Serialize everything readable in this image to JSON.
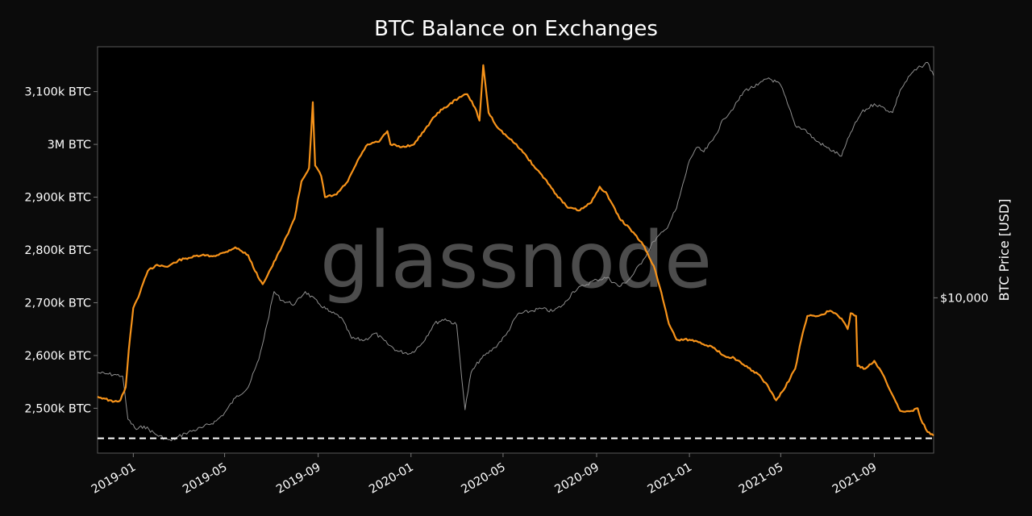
{
  "chart_data": {
    "type": "line",
    "title": "BTC Balance on Exchanges",
    "ylabel_right": "BTC Price [USD]",
    "watermark": "glassnode",
    "x_range": [
      "2018-11-15",
      "2021-11-18"
    ],
    "x_ticks": [
      {
        "date": "2019-01-01",
        "label": "2019-01"
      },
      {
        "date": "2019-05-01",
        "label": "2019-05"
      },
      {
        "date": "2019-09-01",
        "label": "2019-09"
      },
      {
        "date": "2020-01-01",
        "label": "2020-01"
      },
      {
        "date": "2020-05-01",
        "label": "2020-05"
      },
      {
        "date": "2020-09-01",
        "label": "2020-09"
      },
      {
        "date": "2021-01-01",
        "label": "2021-01"
      },
      {
        "date": "2021-05-01",
        "label": "2021-05"
      },
      {
        "date": "2021-09-01",
        "label": "2021-09"
      }
    ],
    "y_left": {
      "range": [
        2415000,
        3185000
      ],
      "ticks": [
        {
          "value": 2500000,
          "label": "2,500k BTC"
        },
        {
          "value": 2600000,
          "label": "2,600k BTC"
        },
        {
          "value": 2700000,
          "label": "2,700k BTC"
        },
        {
          "value": 2800000,
          "label": "2,800k BTC"
        },
        {
          "value": 2900000,
          "label": "2,900k BTC"
        },
        {
          "value": 3000000,
          "label": "3M BTC"
        },
        {
          "value": 3100000,
          "label": "3,100k BTC"
        }
      ]
    },
    "y_right": {
      "scale": "log",
      "range": [
        3000,
        70000
      ],
      "ticks": [
        {
          "value": 10000,
          "label": "$10,000"
        }
      ]
    },
    "reference_line": {
      "value": 2443000,
      "style": "dashed",
      "color": "#ffffff"
    },
    "series": [
      {
        "axis": "left",
        "color": "#f7931a",
        "points": [
          [
            "2018-11-15",
            2522000
          ],
          [
            "2018-11-25",
            2518000
          ],
          [
            "2018-12-05",
            2512000
          ],
          [
            "2018-12-15",
            2515000
          ],
          [
            "2018-12-22",
            2540000
          ],
          [
            "2018-12-26",
            2610000
          ],
          [
            "2019-01-01",
            2690000
          ],
          [
            "2019-01-10",
            2720000
          ],
          [
            "2019-01-20",
            2760000
          ],
          [
            "2019-02-01",
            2772000
          ],
          [
            "2019-02-15",
            2768000
          ],
          [
            "2019-03-01",
            2780000
          ],
          [
            "2019-03-15",
            2785000
          ],
          [
            "2019-04-01",
            2790000
          ],
          [
            "2019-04-15",
            2788000
          ],
          [
            "2019-05-01",
            2795000
          ],
          [
            "2019-05-15",
            2805000
          ],
          [
            "2019-06-01",
            2790000
          ],
          [
            "2019-06-10",
            2760000
          ],
          [
            "2019-06-20",
            2735000
          ],
          [
            "2019-07-01",
            2765000
          ],
          [
            "2019-07-15",
            2805000
          ],
          [
            "2019-08-01",
            2860000
          ],
          [
            "2019-08-10",
            2930000
          ],
          [
            "2019-08-20",
            2955000
          ],
          [
            "2019-08-25",
            3080000
          ],
          [
            "2019-08-28",
            2960000
          ],
          [
            "2019-09-05",
            2940000
          ],
          [
            "2019-09-10",
            2900000
          ],
          [
            "2019-09-25",
            2905000
          ],
          [
            "2019-10-10",
            2930000
          ],
          [
            "2019-10-25",
            2975000
          ],
          [
            "2019-11-05",
            3000000
          ],
          [
            "2019-11-20",
            3005000
          ],
          [
            "2019-12-01",
            3025000
          ],
          [
            "2019-12-05",
            3000000
          ],
          [
            "2019-12-20",
            2995000
          ],
          [
            "2020-01-05",
            3000000
          ],
          [
            "2020-01-20",
            3030000
          ],
          [
            "2020-02-05",
            3060000
          ],
          [
            "2020-02-20",
            3075000
          ],
          [
            "2020-03-05",
            3090000
          ],
          [
            "2020-03-15",
            3095000
          ],
          [
            "2020-03-25",
            3070000
          ],
          [
            "2020-03-31",
            3045000
          ],
          [
            "2020-04-05",
            3150000
          ],
          [
            "2020-04-12",
            3060000
          ],
          [
            "2020-04-25",
            3030000
          ],
          [
            "2020-05-10",
            3010000
          ],
          [
            "2020-05-25",
            2990000
          ],
          [
            "2020-06-10",
            2960000
          ],
          [
            "2020-06-25",
            2935000
          ],
          [
            "2020-07-10",
            2905000
          ],
          [
            "2020-07-25",
            2880000
          ],
          [
            "2020-08-10",
            2875000
          ],
          [
            "2020-08-25",
            2890000
          ],
          [
            "2020-09-05",
            2920000
          ],
          [
            "2020-09-15",
            2905000
          ],
          [
            "2020-10-01",
            2860000
          ],
          [
            "2020-10-15",
            2840000
          ],
          [
            "2020-11-01",
            2810000
          ],
          [
            "2020-11-15",
            2770000
          ],
          [
            "2020-11-25",
            2720000
          ],
          [
            "2020-12-05",
            2660000
          ],
          [
            "2020-12-15",
            2630000
          ],
          [
            "2021-01-01",
            2630000
          ],
          [
            "2021-01-15",
            2625000
          ],
          [
            "2021-02-01",
            2615000
          ],
          [
            "2021-02-15",
            2600000
          ],
          [
            "2021-03-01",
            2595000
          ],
          [
            "2021-03-15",
            2580000
          ],
          [
            "2021-04-01",
            2565000
          ],
          [
            "2021-04-15",
            2540000
          ],
          [
            "2021-04-25",
            2515000
          ],
          [
            "2021-05-05",
            2535000
          ],
          [
            "2021-05-20",
            2575000
          ],
          [
            "2021-05-28",
            2630000
          ],
          [
            "2021-06-05",
            2675000
          ],
          [
            "2021-06-20",
            2675000
          ],
          [
            "2021-07-05",
            2685000
          ],
          [
            "2021-07-20",
            2670000
          ],
          [
            "2021-07-28",
            2650000
          ],
          [
            "2021-08-01",
            2680000
          ],
          [
            "2021-08-08",
            2675000
          ],
          [
            "2021-08-10",
            2580000
          ],
          [
            "2021-08-20",
            2575000
          ],
          [
            "2021-09-01",
            2590000
          ],
          [
            "2021-09-10",
            2570000
          ],
          [
            "2021-09-25",
            2525000
          ],
          [
            "2021-10-05",
            2495000
          ],
          [
            "2021-10-20",
            2495000
          ],
          [
            "2021-10-28",
            2500000
          ],
          [
            "2021-11-01",
            2480000
          ],
          [
            "2021-11-10",
            2455000
          ],
          [
            "2021-11-18",
            2448000
          ]
        ]
      },
      {
        "axis": "right",
        "color": "#8f8f8f",
        "points": [
          [
            "2018-11-15",
            5600
          ],
          [
            "2018-11-25",
            5550
          ],
          [
            "2018-12-10",
            5500
          ],
          [
            "2018-12-18",
            5450
          ],
          [
            "2018-12-25",
            3900
          ],
          [
            "2019-01-05",
            3600
          ],
          [
            "2019-01-15",
            3700
          ],
          [
            "2019-02-01",
            3450
          ],
          [
            "2019-02-20",
            3300
          ],
          [
            "2019-03-10",
            3500
          ],
          [
            "2019-04-01",
            3650
          ],
          [
            "2019-04-20",
            3850
          ],
          [
            "2019-05-01",
            4100
          ],
          [
            "2019-05-15",
            4600
          ],
          [
            "2019-06-01",
            5000
          ],
          [
            "2019-06-15",
            6200
          ],
          [
            "2019-06-26",
            8200
          ],
          [
            "2019-07-05",
            10500
          ],
          [
            "2019-07-15",
            9800
          ],
          [
            "2019-08-01",
            9500
          ],
          [
            "2019-08-15",
            10500
          ],
          [
            "2019-09-01",
            9600
          ],
          [
            "2019-09-15",
            9000
          ],
          [
            "2019-10-01",
            8600
          ],
          [
            "2019-10-15",
            7300
          ],
          [
            "2019-11-01",
            7200
          ],
          [
            "2019-11-15",
            7600
          ],
          [
            "2019-12-01",
            7000
          ],
          [
            "2019-12-15",
            6600
          ],
          [
            "2020-01-01",
            6500
          ],
          [
            "2020-01-15",
            7000
          ],
          [
            "2020-02-01",
            8200
          ],
          [
            "2020-02-15",
            8500
          ],
          [
            "2020-03-01",
            8100
          ],
          [
            "2020-03-12",
            4200
          ],
          [
            "2020-03-20",
            5600
          ],
          [
            "2020-04-01",
            6200
          ],
          [
            "2020-04-20",
            6800
          ],
          [
            "2020-05-05",
            7500
          ],
          [
            "2020-05-20",
            8800
          ],
          [
            "2020-06-05",
            9000
          ],
          [
            "2020-06-20",
            9200
          ],
          [
            "2020-07-05",
            9000
          ],
          [
            "2020-07-20",
            9500
          ],
          [
            "2020-08-01",
            10500
          ],
          [
            "2020-08-15",
            11000
          ],
          [
            "2020-09-01",
            11500
          ],
          [
            "2020-09-15",
            11700
          ],
          [
            "2020-10-01",
            10900
          ],
          [
            "2020-10-15",
            11600
          ],
          [
            "2020-11-01",
            13400
          ],
          [
            "2020-11-15",
            15500
          ],
          [
            "2020-12-01",
            17000
          ],
          [
            "2020-12-15",
            20000
          ],
          [
            "2021-01-01",
            29000
          ],
          [
            "2021-01-10",
            32000
          ],
          [
            "2021-01-20",
            31000
          ],
          [
            "2021-02-01",
            34000
          ],
          [
            "2021-02-15",
            40000
          ],
          [
            "2021-03-01",
            44000
          ],
          [
            "2021-03-15",
            50000
          ],
          [
            "2021-04-01",
            52000
          ],
          [
            "2021-04-15",
            55000
          ],
          [
            "2021-05-01",
            52000
          ],
          [
            "2021-05-10",
            45000
          ],
          [
            "2021-05-20",
            38000
          ],
          [
            "2021-06-01",
            37000
          ],
          [
            "2021-06-15",
            34000
          ],
          [
            "2021-07-01",
            32000
          ],
          [
            "2021-07-20",
            30000
          ],
          [
            "2021-08-01",
            36000
          ],
          [
            "2021-08-15",
            42000
          ],
          [
            "2021-09-01",
            45000
          ],
          [
            "2021-09-10",
            44000
          ],
          [
            "2021-09-25",
            42000
          ],
          [
            "2021-10-05",
            50000
          ],
          [
            "2021-10-20",
            57000
          ],
          [
            "2021-11-01",
            60000
          ],
          [
            "2021-11-10",
            62000
          ],
          [
            "2021-11-18",
            56000
          ]
        ]
      }
    ]
  }
}
